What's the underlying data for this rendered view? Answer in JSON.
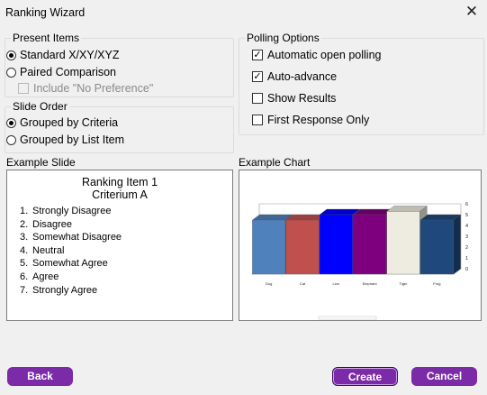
{
  "window": {
    "title": "Ranking Wizard"
  },
  "present_items": {
    "legend": "Present Items",
    "options": [
      "Standard X/XY/XYZ",
      "Paired Comparison"
    ],
    "selected": "Standard X/XY/XYZ",
    "include_no_pref": {
      "label": "Include \"No Preference\"",
      "checked": false,
      "enabled": false
    }
  },
  "slide_order": {
    "legend": "Slide Order",
    "options": [
      "Grouped by Criteria",
      "Grouped by List Item"
    ],
    "selected": "Grouped by Criteria"
  },
  "polling": {
    "legend": "Polling Options",
    "options": [
      {
        "label": "Automatic open polling",
        "checked": true
      },
      {
        "label": "Auto-advance",
        "checked": true
      },
      {
        "label": "Show Results",
        "checked": false
      },
      {
        "label": "First Response Only",
        "checked": false
      }
    ]
  },
  "example_slide": {
    "label": "Example Slide",
    "title_line1": "Ranking Item 1",
    "title_line2": "Criterium A",
    "items": [
      "Strongly Disagree",
      "Disagree",
      "Somewhat Disagree",
      "Neutral",
      "Somewhat Agree",
      "Agree",
      "Strongly Agree"
    ]
  },
  "example_chart": {
    "label": "Example Chart"
  },
  "chart_data": {
    "type": "bar",
    "categories": [
      "Dog",
      "Cat",
      "Lion",
      "Elephant",
      "Tiger",
      "Frog"
    ],
    "values": [
      5,
      5,
      5.5,
      5.5,
      5.8,
      5
    ],
    "colors": [
      "#4f81bd",
      "#c0504d",
      "#0000ff",
      "#7f007f",
      "#eeece1",
      "#1f497d"
    ],
    "ylim": [
      0,
      6
    ],
    "yticks": [
      "0",
      "1",
      "2",
      "3",
      "4",
      "5",
      "6"
    ],
    "grid": true
  },
  "buttons": {
    "back": "Back",
    "create": "Create",
    "cancel": "Cancel"
  }
}
